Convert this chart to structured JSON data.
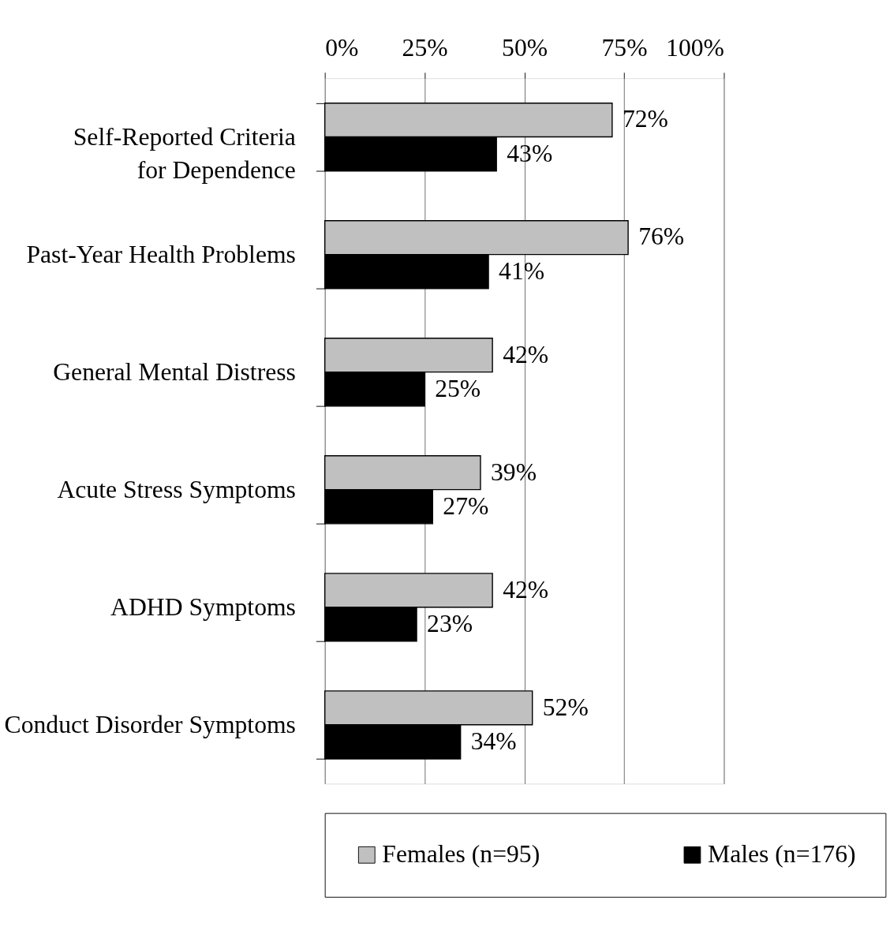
{
  "chart_data": {
    "type": "bar",
    "orientation": "horizontal",
    "categories": [
      "Self-Reported Criteria for Dependence",
      "Past-Year Health Problems",
      "General Mental Distress",
      "Acute Stress Symptoms",
      "ADHD Symptoms",
      "Conduct Disorder Symptoms"
    ],
    "series": [
      {
        "name": "Females (n=95)",
        "color": "#c0c0c0",
        "values": [
          72,
          76,
          42,
          39,
          42,
          52
        ],
        "value_labels": [
          "72%",
          "76%",
          "42%",
          "39%",
          "42%",
          "52%"
        ]
      },
      {
        "name": "Males (n=176)",
        "color": "#000000",
        "values": [
          43,
          41,
          25,
          27,
          23,
          34
        ],
        "value_labels": [
          "43%",
          "41%",
          "25%",
          "27%",
          "23%",
          "34%"
        ]
      }
    ],
    "xlim": [
      0,
      100
    ],
    "xticks": [
      {
        "value": 0,
        "label": "0%"
      },
      {
        "value": 25,
        "label": "25%"
      },
      {
        "value": 50,
        "label": "50%"
      },
      {
        "value": 75,
        "label": "75%"
      },
      {
        "value": 100,
        "label": "100%"
      }
    ],
    "grid": "x",
    "legend": "bottom"
  }
}
